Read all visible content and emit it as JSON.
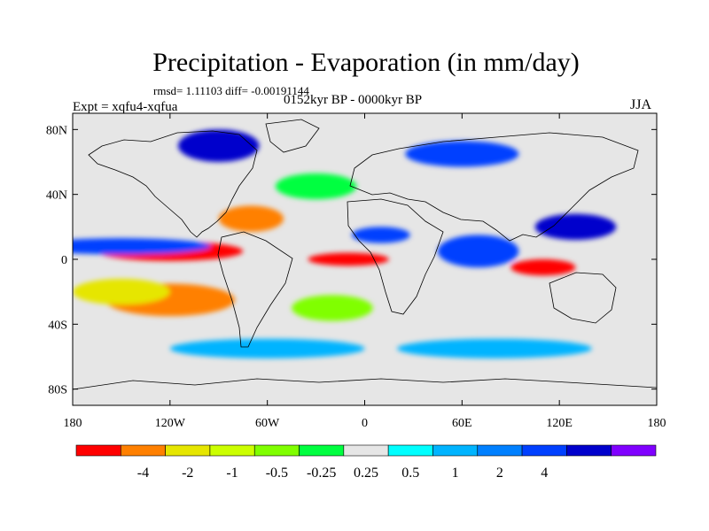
{
  "figure": {
    "title": "Precipitation - Evaporation (in mm/day)",
    "stats": "rmsd= 1.11103 diff= -0.00191144",
    "period": "0152kyr BP - 0000kyr BP",
    "experiment": "Expt = xqfu4-xqfua",
    "season": "JJA"
  },
  "map": {
    "lon_range": [
      -180,
      180
    ],
    "lat_range": [
      -90,
      90
    ],
    "lon_ticks": [
      {
        "lon": -180,
        "label": "180"
      },
      {
        "lon": -120,
        "label": "120W"
      },
      {
        "lon": -60,
        "label": "60W"
      },
      {
        "lon": 0,
        "label": "0"
      },
      {
        "lon": 60,
        "label": "60E"
      },
      {
        "lon": 120,
        "label": "120E"
      },
      {
        "lon": 180,
        "label": "180"
      }
    ],
    "lat_ticks": [
      {
        "lat": 80,
        "label": "80N"
      },
      {
        "lat": 40,
        "label": "40N"
      },
      {
        "lat": 0,
        "label": "0"
      },
      {
        "lat": -40,
        "label": "40S"
      },
      {
        "lat": -80,
        "label": "80S"
      }
    ],
    "background_color": "#e6e6e6",
    "coastline_color": "#000000",
    "fields": [
      {
        "name": "equatorial-pacific-drying",
        "lon": -120,
        "lat": 5,
        "rx": 45,
        "ry": 6,
        "color": "#ff0000"
      },
      {
        "name": "east-pacific-wet",
        "lon": -150,
        "lat": 8,
        "rx": 55,
        "ry": 5,
        "color": "#0040ff"
      },
      {
        "name": "caribbean-drying",
        "lon": -70,
        "lat": 25,
        "rx": 20,
        "ry": 8,
        "color": "#ff8000"
      },
      {
        "name": "atlantic-equatorial-drying",
        "lon": -10,
        "lat": 0,
        "rx": 25,
        "ry": 4,
        "color": "#ff0000"
      },
      {
        "name": "south-pacific-drying",
        "lon": -120,
        "lat": -25,
        "rx": 40,
        "ry": 10,
        "color": "#ff8000"
      },
      {
        "name": "south-pacific-yellow",
        "lon": -150,
        "lat": -20,
        "rx": 30,
        "ry": 8,
        "color": "#e6e600"
      },
      {
        "name": "maritime-continent-drying",
        "lon": 110,
        "lat": -5,
        "rx": 20,
        "ry": 5,
        "color": "#ff0000"
      },
      {
        "name": "indian-ocean-wet",
        "lon": 70,
        "lat": 5,
        "rx": 25,
        "ry": 10,
        "color": "#0040ff"
      },
      {
        "name": "west-pacific-wet",
        "lon": 130,
        "lat": 20,
        "rx": 25,
        "ry": 8,
        "color": "#0000cc"
      },
      {
        "name": "arctic-wet",
        "lon": -90,
        "lat": 70,
        "rx": 25,
        "ry": 10,
        "color": "#0000cc"
      },
      {
        "name": "siberia-wet",
        "lon": 60,
        "lat": 65,
        "rx": 35,
        "ry": 8,
        "color": "#0040ff"
      },
      {
        "name": "southern-ocean-wet",
        "lon": -60,
        "lat": -55,
        "rx": 60,
        "ry": 6,
        "color": "#00b4ff"
      },
      {
        "name": "southern-ocean-wet-east",
        "lon": 80,
        "lat": -55,
        "rx": 60,
        "ry": 6,
        "color": "#00b4ff"
      },
      {
        "name": "north-atlantic-green",
        "lon": -30,
        "lat": 45,
        "rx": 25,
        "ry": 8,
        "color": "#00ff40"
      },
      {
        "name": "africa-sahel-wet",
        "lon": 10,
        "lat": 15,
        "rx": 18,
        "ry": 5,
        "color": "#0040ff"
      },
      {
        "name": "south-atlantic-green",
        "lon": -20,
        "lat": -30,
        "rx": 25,
        "ry": 8,
        "color": "#80ff00"
      }
    ]
  },
  "colorbar": {
    "colors": [
      "#ff0000",
      "#ff8000",
      "#e6e600",
      "#ccff00",
      "#80ff00",
      "#00ff40",
      "#e6e6e6",
      "#00ffff",
      "#00b4ff",
      "#0080ff",
      "#0040ff",
      "#0000cc",
      "#8000ff"
    ],
    "labels": [
      "-4",
      "-2",
      "-1",
      "-0.5",
      "-0.25",
      "0.25",
      "0.5",
      "1",
      "2",
      "4"
    ],
    "label_positions": [
      1,
      2,
      3,
      4,
      5,
      6,
      7,
      8,
      9,
      10
    ]
  }
}
